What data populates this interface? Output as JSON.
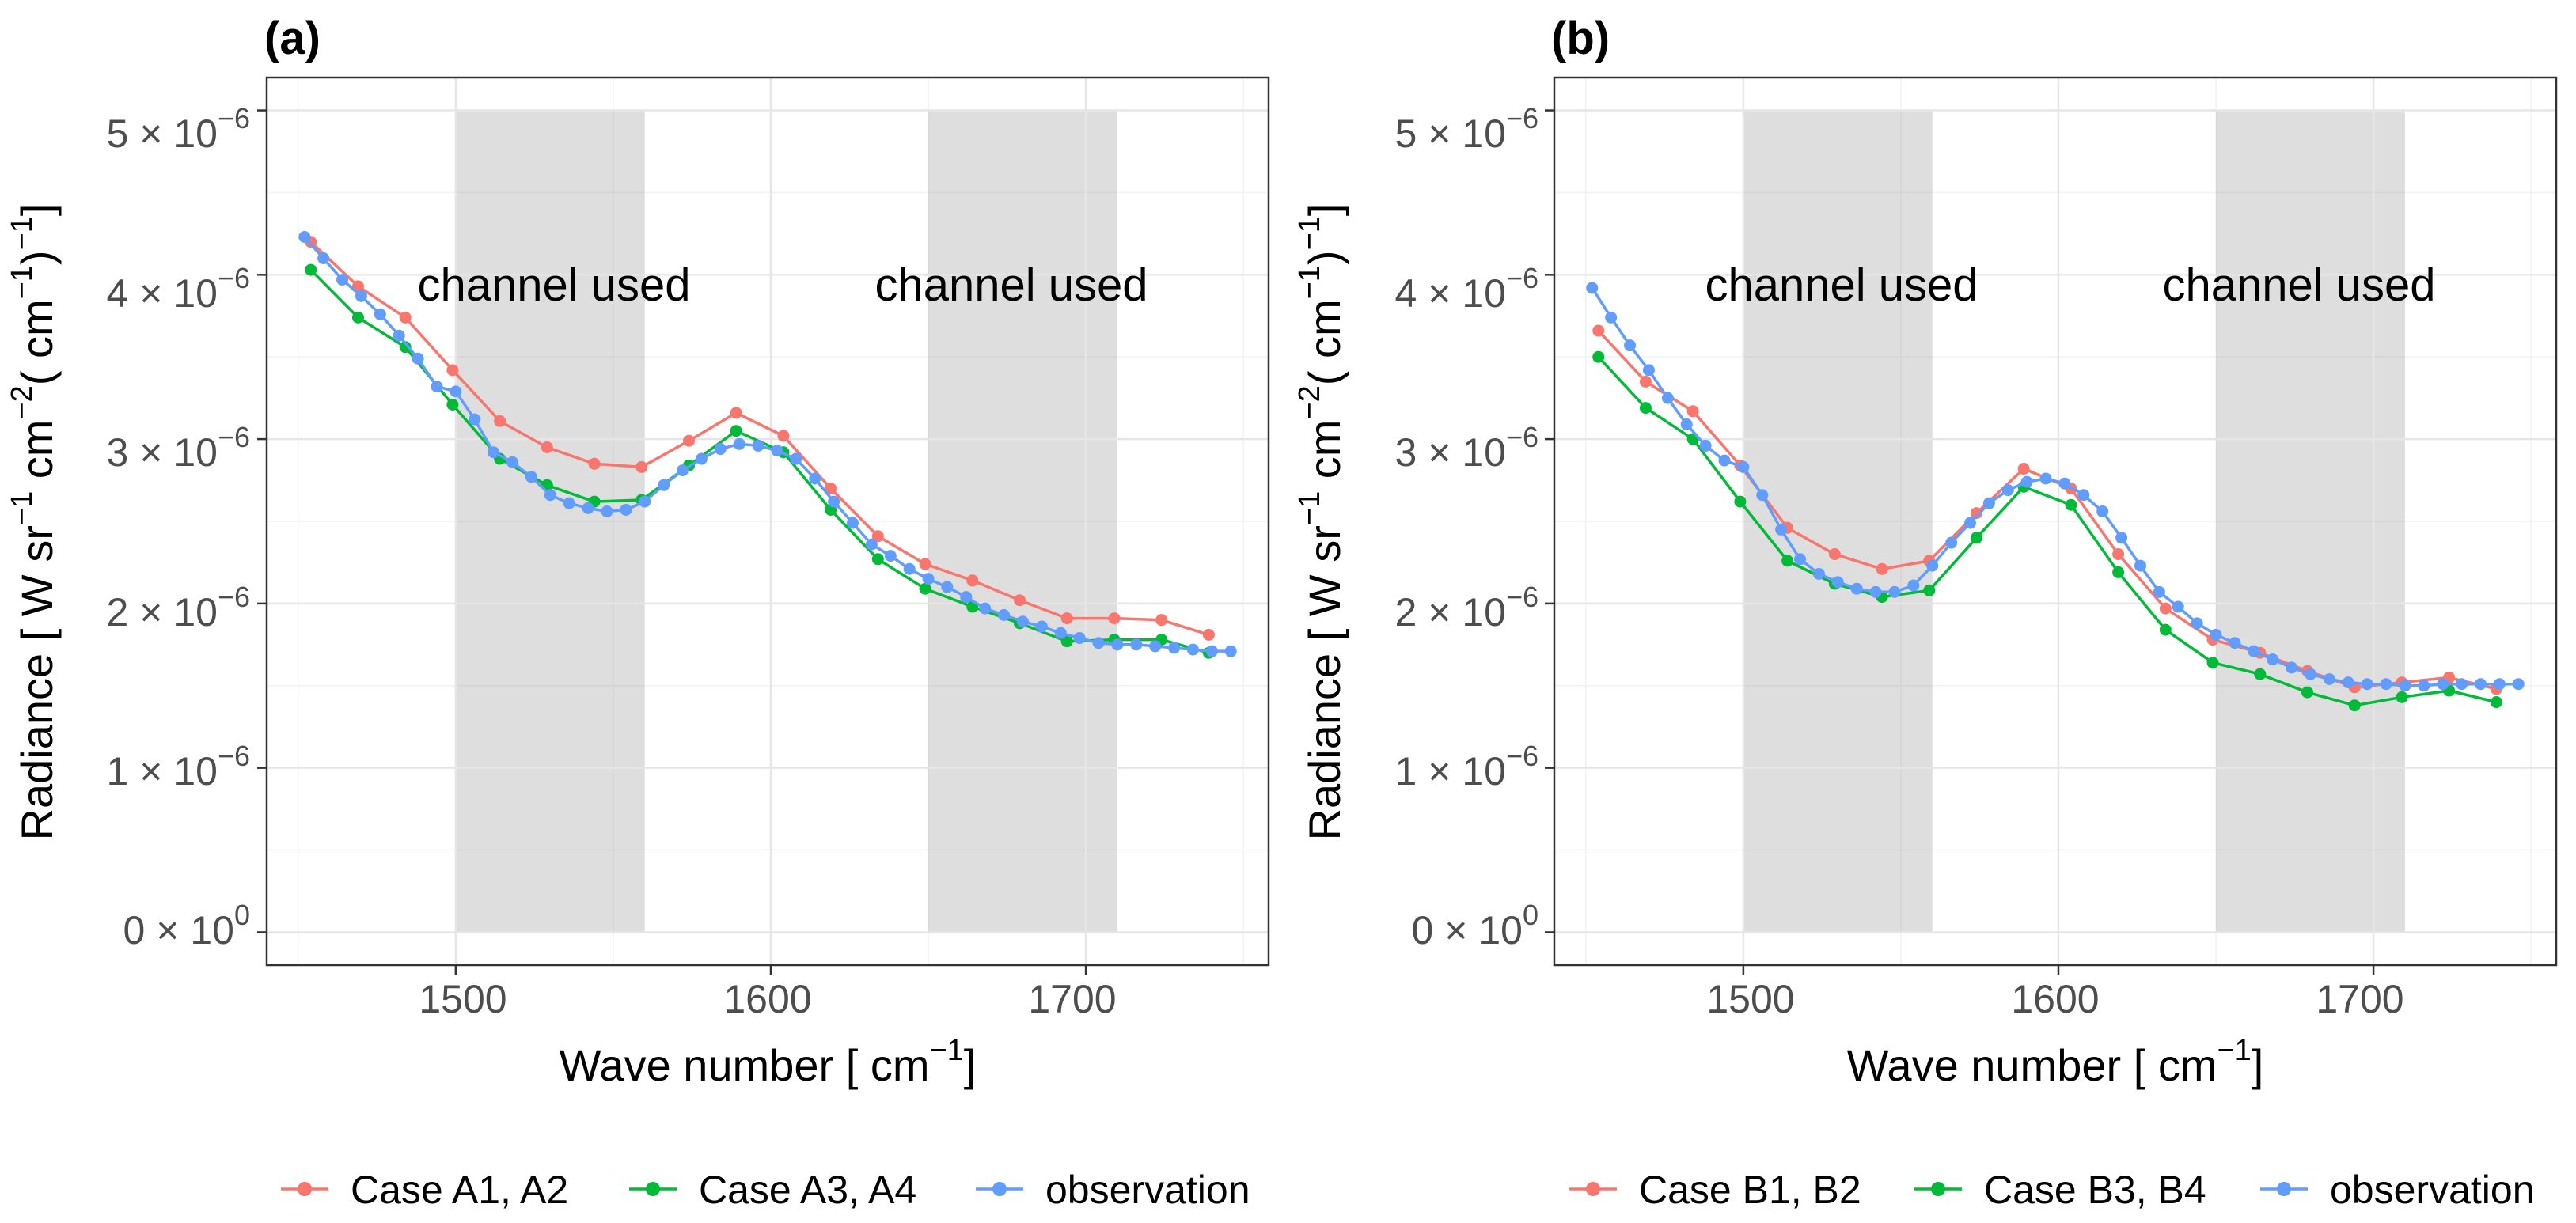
{
  "chart_data": [
    {
      "type": "line",
      "panel_label": "(a)",
      "xlabel": "Wave number [ cm",
      "xlabel_sup": "−1",
      "xlabel_end": "]",
      "ylabel_parts": [
        "Radiance [ W sr",
        "−1",
        " cm",
        "−2",
        "( cm",
        "−1",
        ")",
        "−1",
        "]"
      ],
      "xlim": [
        1440,
        1758
      ],
      "ylim": [
        -0.2,
        5.2
      ],
      "xticks": [
        1500,
        1600,
        1700
      ],
      "xtick_labels": [
        "1500",
        "1600",
        "1700"
      ],
      "yticks": [
        0,
        1,
        2,
        3,
        4,
        5
      ],
      "ytick_labels": [
        {
          "mant": "0",
          "exp": "0"
        },
        {
          "mant": "1",
          "exp": "−6"
        },
        {
          "mant": "2",
          "exp": "−6"
        },
        {
          "mant": "3",
          "exp": "−6"
        },
        {
          "mant": "4",
          "exp": "−6"
        },
        {
          "mant": "5",
          "exp": "−6"
        }
      ],
      "y_unit_multiplier": "× 10^-6",
      "shaded_regions": [
        {
          "x0": 1500,
          "x1": 1560,
          "label": "channel used"
        },
        {
          "x0": 1650,
          "x1": 1710,
          "label": "channel used"
        }
      ],
      "series": [
        {
          "name": "Case A1, A2",
          "color": "#F8766D",
          "x": [
            1454,
            1469,
            1484,
            1499,
            1514,
            1529,
            1544,
            1559,
            1574,
            1589,
            1604,
            1619,
            1634,
            1649,
            1664,
            1679,
            1694,
            1709,
            1724,
            1739
          ],
          "y": [
            4.2,
            3.93,
            3.74,
            3.42,
            3.11,
            2.95,
            2.85,
            2.83,
            2.99,
            3.16,
            3.02,
            2.7,
            2.41,
            2.24,
            2.14,
            2.02,
            1.91,
            1.91,
            1.9,
            1.81
          ]
        },
        {
          "name": "Case A3, A4",
          "color": "#00BA38",
          "x": [
            1454,
            1469,
            1484,
            1499,
            1514,
            1529,
            1544,
            1559,
            1574,
            1589,
            1604,
            1619,
            1634,
            1649,
            1664,
            1679,
            1694,
            1709,
            1724,
            1739
          ],
          "y": [
            4.03,
            3.74,
            3.56,
            3.21,
            2.88,
            2.72,
            2.62,
            2.63,
            2.84,
            3.05,
            2.92,
            2.57,
            2.27,
            2.09,
            1.98,
            1.88,
            1.77,
            1.78,
            1.78,
            1.7
          ]
        },
        {
          "name": "observation",
          "color": "#619CFF",
          "x": [
            1452,
            1458,
            1464,
            1470,
            1476,
            1482,
            1488,
            1494,
            1500,
            1506,
            1512,
            1518,
            1524,
            1530,
            1536,
            1542,
            1548,
            1554,
            1560,
            1566,
            1572,
            1578,
            1584,
            1590,
            1596,
            1602,
            1608,
            1614,
            1620,
            1626,
            1632,
            1638,
            1644,
            1650,
            1656,
            1662,
            1668,
            1674,
            1680,
            1686,
            1692,
            1698,
            1704,
            1710,
            1716,
            1722,
            1728,
            1734,
            1740,
            1746
          ],
          "y": [
            4.23,
            4.1,
            3.97,
            3.87,
            3.76,
            3.63,
            3.49,
            3.32,
            3.29,
            3.12,
            2.92,
            2.86,
            2.77,
            2.66,
            2.61,
            2.58,
            2.56,
            2.57,
            2.62,
            2.72,
            2.81,
            2.88,
            2.94,
            2.97,
            2.96,
            2.93,
            2.88,
            2.76,
            2.62,
            2.49,
            2.36,
            2.29,
            2.21,
            2.15,
            2.1,
            2.04,
            1.97,
            1.93,
            1.89,
            1.86,
            1.82,
            1.79,
            1.76,
            1.75,
            1.75,
            1.74,
            1.73,
            1.72,
            1.71,
            1.71
          ]
        }
      ]
    },
    {
      "type": "line",
      "panel_label": "(b)",
      "xlabel": "Wave number [ cm",
      "xlabel_sup": "−1",
      "xlabel_end": "]",
      "ylabel_parts": [
        "Radiance [ W sr",
        "−1",
        " cm",
        "−2",
        "( cm",
        "−1",
        ")",
        "−1",
        "]"
      ],
      "xlim": [
        1440,
        1758
      ],
      "ylim": [
        -0.2,
        5.2
      ],
      "xticks": [
        1500,
        1600,
        1700
      ],
      "xtick_labels": [
        "1500",
        "1600",
        "1700"
      ],
      "yticks": [
        0,
        1,
        2,
        3,
        4,
        5
      ],
      "ytick_labels": [
        {
          "mant": "0",
          "exp": "0"
        },
        {
          "mant": "1",
          "exp": "−6"
        },
        {
          "mant": "2",
          "exp": "−6"
        },
        {
          "mant": "3",
          "exp": "−6"
        },
        {
          "mant": "4",
          "exp": "−6"
        },
        {
          "mant": "5",
          "exp": "−6"
        }
      ],
      "y_unit_multiplier": "× 10^-6",
      "shaded_regions": [
        {
          "x0": 1500,
          "x1": 1560,
          "label": "channel used"
        },
        {
          "x0": 1650,
          "x1": 1710,
          "label": "channel used"
        }
      ],
      "series": [
        {
          "name": "Case B1, B2",
          "color": "#F8766D",
          "x": [
            1454,
            1469,
            1484,
            1499,
            1514,
            1529,
            1544,
            1559,
            1574,
            1589,
            1604,
            1619,
            1634,
            1649,
            1664,
            1679,
            1694,
            1709,
            1724,
            1739
          ],
          "y": [
            3.66,
            3.35,
            3.17,
            2.84,
            2.46,
            2.3,
            2.21,
            2.26,
            2.55,
            2.82,
            2.7,
            2.3,
            1.97,
            1.78,
            1.7,
            1.59,
            1.49,
            1.52,
            1.55,
            1.48
          ]
        },
        {
          "name": "Case B3, B4",
          "color": "#00BA38",
          "x": [
            1454,
            1469,
            1484,
            1499,
            1514,
            1529,
            1544,
            1559,
            1574,
            1589,
            1604,
            1619,
            1634,
            1649,
            1664,
            1679,
            1694,
            1709,
            1724,
            1739
          ],
          "y": [
            3.5,
            3.19,
            3.0,
            2.62,
            2.26,
            2.12,
            2.04,
            2.08,
            2.4,
            2.71,
            2.6,
            2.19,
            1.84,
            1.64,
            1.57,
            1.46,
            1.38,
            1.43,
            1.47,
            1.4
          ]
        },
        {
          "name": "observation",
          "color": "#619CFF",
          "x": [
            1452,
            1458,
            1464,
            1470,
            1476,
            1482,
            1488,
            1494,
            1500,
            1506,
            1512,
            1518,
            1524,
            1530,
            1536,
            1542,
            1548,
            1554,
            1560,
            1566,
            1572,
            1578,
            1584,
            1590,
            1596,
            1602,
            1608,
            1614,
            1620,
            1626,
            1632,
            1638,
            1644,
            1650,
            1656,
            1662,
            1668,
            1674,
            1680,
            1686,
            1692,
            1698,
            1704,
            1710,
            1716,
            1722,
            1728,
            1734,
            1740,
            1746
          ],
          "y": [
            3.92,
            3.74,
            3.57,
            3.42,
            3.25,
            3.09,
            2.96,
            2.87,
            2.83,
            2.66,
            2.45,
            2.27,
            2.18,
            2.13,
            2.09,
            2.07,
            2.07,
            2.11,
            2.23,
            2.37,
            2.49,
            2.61,
            2.69,
            2.74,
            2.76,
            2.73,
            2.66,
            2.56,
            2.4,
            2.23,
            2.07,
            1.98,
            1.88,
            1.81,
            1.76,
            1.71,
            1.66,
            1.61,
            1.57,
            1.54,
            1.52,
            1.51,
            1.51,
            1.5,
            1.5,
            1.51,
            1.51,
            1.51,
            1.51,
            1.51
          ]
        }
      ]
    }
  ]
}
